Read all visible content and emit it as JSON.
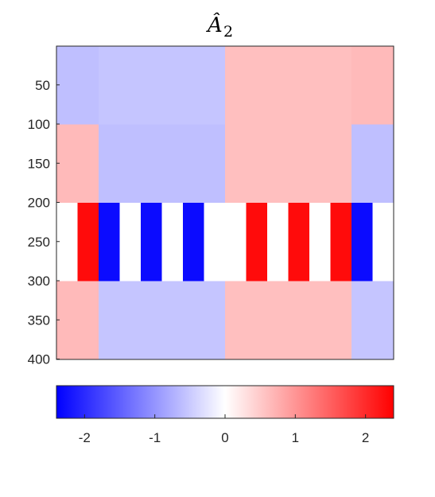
{
  "chart_data": {
    "type": "heatmap",
    "title": "Â",
    "title_subscript": "2",
    "y_ticks": [
      50,
      100,
      150,
      200,
      250,
      300,
      350,
      400
    ],
    "y_range": [
      1,
      400
    ],
    "x_range": [
      1,
      400
    ],
    "row_bands": [
      {
        "rows": [
          1,
          100
        ],
        "columns": [
          {
            "cols": [
              1,
              50
            ],
            "value": -0.6
          },
          {
            "cols": [
              51,
              200
            ],
            "value": -0.55
          },
          {
            "cols": [
              201,
              350
            ],
            "value": 0.6
          },
          {
            "cols": [
              351,
              400
            ],
            "value": 0.65
          }
        ]
      },
      {
        "rows": [
          101,
          200
        ],
        "columns": [
          {
            "cols": [
              1,
              50
            ],
            "value": 0.65
          },
          {
            "cols": [
              51,
              200
            ],
            "value": -0.6
          },
          {
            "cols": [
              201,
              350
            ],
            "value": 0.6
          },
          {
            "cols": [
              351,
              400
            ],
            "value": -0.6
          }
        ]
      },
      {
        "rows": [
          201,
          300
        ],
        "columns": [
          {
            "cols": [
              1,
              25
            ],
            "value": 0
          },
          {
            "cols": [
              26,
              50
            ],
            "value": 2.3
          },
          {
            "cols": [
              51,
              75
            ],
            "value": -2.3
          },
          {
            "cols": [
              76,
              100
            ],
            "value": 0
          },
          {
            "cols": [
              101,
              125
            ],
            "value": -2.3
          },
          {
            "cols": [
              126,
              150
            ],
            "value": 0
          },
          {
            "cols": [
              151,
              175
            ],
            "value": -2.3
          },
          {
            "cols": [
              176,
              225
            ],
            "value": 0
          },
          {
            "cols": [
              226,
              250
            ],
            "value": 2.3
          },
          {
            "cols": [
              251,
              275
            ],
            "value": 0
          },
          {
            "cols": [
              276,
              300
            ],
            "value": 2.3
          },
          {
            "cols": [
              301,
              325
            ],
            "value": 0
          },
          {
            "cols": [
              326,
              350
            ],
            "value": 2.3
          },
          {
            "cols": [
              351,
              375
            ],
            "value": -2.3
          },
          {
            "cols": [
              376,
              400
            ],
            "value": 0
          }
        ]
      },
      {
        "rows": [
          301,
          400
        ],
        "columns": [
          {
            "cols": [
              1,
              50
            ],
            "value": 0.65
          },
          {
            "cols": [
              51,
              200
            ],
            "value": -0.55
          },
          {
            "cols": [
              201,
              350
            ],
            "value": 0.6
          },
          {
            "cols": [
              351,
              400
            ],
            "value": -0.55
          }
        ]
      }
    ],
    "colorbar": {
      "orientation": "horizontal",
      "placement": "below",
      "range": [
        -2.4,
        2.4
      ],
      "ticks": [
        -2,
        -1,
        0,
        1,
        2
      ],
      "colormap": [
        "#0000ff",
        "#ffffff",
        "#ff0000"
      ]
    }
  }
}
